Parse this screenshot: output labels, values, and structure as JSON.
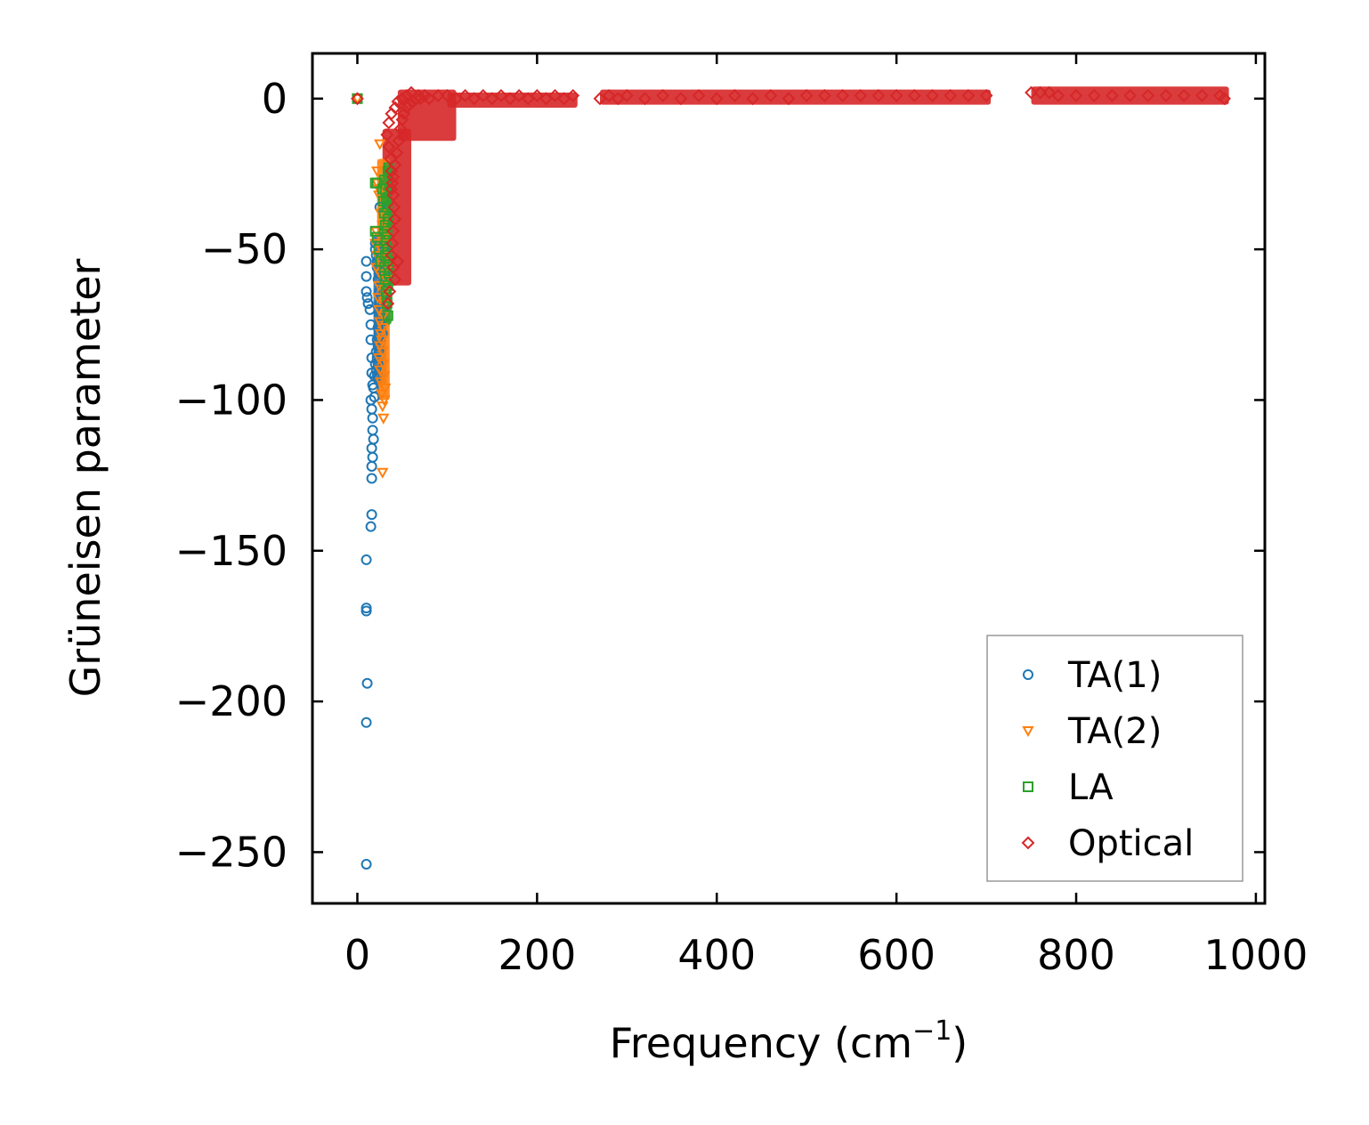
{
  "chart_data": {
    "type": "scatter",
    "title": "",
    "xlabel": "Frequency (cm",
    "xlabel_sup": "−1",
    "xlabel_tail": ")",
    "ylabel": "Grüneisen parameter",
    "xlim": [
      -50,
      1010
    ],
    "ylim": [
      -267,
      15
    ],
    "xticks": [
      0,
      200,
      400,
      600,
      800,
      1000
    ],
    "xtick_labels": [
      "0",
      "200",
      "400",
      "600",
      "800",
      "1000"
    ],
    "yticks": [
      0,
      -50,
      -100,
      -150,
      -200,
      -250
    ],
    "ytick_labels": [
      "0",
      "−50",
      "−100",
      "−150",
      "−200",
      "−250"
    ],
    "grid": false,
    "legend_position": "lower-right",
    "series": [
      {
        "name": "TA(1)",
        "marker": "circle",
        "color": "#1f77b4",
        "points": [
          [
            0,
            0
          ],
          [
            10,
            -54
          ],
          [
            10,
            -59
          ],
          [
            10,
            -64
          ],
          [
            11,
            -66
          ],
          [
            12,
            -68
          ],
          [
            14,
            -70
          ],
          [
            15,
            -75
          ],
          [
            15,
            -80
          ],
          [
            16,
            -86
          ],
          [
            16,
            -91
          ],
          [
            17,
            -95
          ],
          [
            15,
            -100
          ],
          [
            16,
            -103
          ],
          [
            17,
            -106
          ],
          [
            17,
            -110
          ],
          [
            18,
            -113
          ],
          [
            16,
            -116
          ],
          [
            17,
            -119
          ],
          [
            16,
            -122
          ],
          [
            16,
            -126
          ],
          [
            16,
            -138
          ],
          [
            15,
            -142
          ],
          [
            10,
            -153
          ],
          [
            10,
            -169
          ],
          [
            10,
            -170
          ],
          [
            11,
            -194
          ],
          [
            10,
            -207
          ],
          [
            10,
            -254
          ],
          [
            20,
            -48
          ],
          [
            21,
            -52
          ],
          [
            22,
            -56
          ],
          [
            23,
            -60
          ],
          [
            24,
            -64
          ],
          [
            25,
            -68
          ],
          [
            24,
            -72
          ],
          [
            23,
            -76
          ],
          [
            22,
            -80
          ],
          [
            21,
            -84
          ],
          [
            20,
            -88
          ],
          [
            19,
            -92
          ],
          [
            18,
            -96
          ],
          [
            19,
            -99
          ],
          [
            20,
            -50
          ],
          [
            22,
            -54
          ],
          [
            24,
            -58
          ],
          [
            26,
            -62
          ],
          [
            27,
            -66
          ],
          [
            26,
            -70
          ],
          [
            25,
            -74
          ],
          [
            24,
            -78
          ],
          [
            23,
            -82
          ],
          [
            22,
            -86
          ],
          [
            21,
            -90
          ],
          [
            27,
            -48
          ],
          [
            28,
            -52
          ],
          [
            28,
            -56
          ],
          [
            29,
            -60
          ],
          [
            29,
            -64
          ],
          [
            28,
            -68
          ],
          [
            27,
            -72
          ],
          [
            26,
            -76
          ],
          [
            25,
            -80
          ],
          [
            24,
            -84
          ],
          [
            23,
            -88
          ],
          [
            22,
            -92
          ],
          [
            25,
            -36
          ],
          [
            30,
            -50
          ],
          [
            30,
            -58
          ],
          [
            29,
            -70
          ],
          [
            28,
            -78
          ]
        ]
      },
      {
        "name": "TA(2)",
        "marker": "triangle-down",
        "color": "#ff7f0e",
        "points": [
          [
            0,
            0
          ],
          [
            25,
            -15
          ],
          [
            22,
            -24
          ],
          [
            24,
            -32
          ],
          [
            26,
            -38
          ],
          [
            28,
            -42
          ],
          [
            30,
            -46
          ],
          [
            27,
            -50
          ],
          [
            26,
            -54
          ],
          [
            25,
            -58
          ],
          [
            24,
            -62
          ],
          [
            23,
            -66
          ],
          [
            24,
            -70
          ],
          [
            25,
            -74
          ],
          [
            26,
            -78
          ],
          [
            25,
            -82
          ],
          [
            24,
            -86
          ],
          [
            25,
            -90
          ],
          [
            26,
            -94
          ],
          [
            27,
            -98
          ],
          [
            28,
            -102
          ],
          [
            29,
            -106
          ],
          [
            28,
            -124
          ],
          [
            30,
            -40
          ],
          [
            32,
            -44
          ],
          [
            31,
            -48
          ],
          [
            33,
            -52
          ],
          [
            34,
            -56
          ],
          [
            32,
            -60
          ],
          [
            31,
            -64
          ],
          [
            30,
            -68
          ],
          [
            29,
            -72
          ],
          [
            28,
            -76
          ],
          [
            27,
            -80
          ],
          [
            28,
            -84
          ],
          [
            29,
            -88
          ],
          [
            30,
            -92
          ],
          [
            31,
            -96
          ],
          [
            30,
            -100
          ],
          [
            22,
            -28
          ],
          [
            24,
            -30
          ],
          [
            21,
            -44
          ],
          [
            20,
            -48
          ],
          [
            22,
            -52
          ],
          [
            21,
            -56
          ]
        ]
      },
      {
        "name": "LA",
        "marker": "square",
        "color": "#2ca02c",
        "points": [
          [
            0,
            0
          ],
          [
            20,
            -28
          ],
          [
            22,
            -28
          ],
          [
            35,
            -23
          ],
          [
            30,
            -27
          ],
          [
            31,
            -30
          ],
          [
            32,
            -33
          ],
          [
            33,
            -36
          ],
          [
            34,
            -40
          ],
          [
            33,
            -44
          ],
          [
            32,
            -48
          ],
          [
            31,
            -52
          ],
          [
            30,
            -56
          ],
          [
            31,
            -60
          ],
          [
            32,
            -64
          ],
          [
            33,
            -68
          ],
          [
            34,
            -72
          ],
          [
            20,
            -44
          ],
          [
            22,
            -46
          ],
          [
            24,
            -50
          ],
          [
            26,
            -54
          ],
          [
            28,
            -30
          ],
          [
            29,
            -34
          ],
          [
            30,
            -38
          ],
          [
            31,
            -42
          ],
          [
            32,
            -46
          ],
          [
            33,
            -50
          ],
          [
            34,
            -54
          ],
          [
            35,
            -58
          ],
          [
            34,
            -62
          ],
          [
            33,
            -66
          ]
        ]
      },
      {
        "name": "Optical",
        "marker": "diamond",
        "color": "#d62728",
        "points": [
          [
            0,
            0
          ],
          [
            33,
            -12
          ],
          [
            35,
            -8
          ],
          [
            38,
            -5
          ],
          [
            42,
            -3
          ],
          [
            45,
            -1
          ],
          [
            50,
            0
          ],
          [
            55,
            1
          ],
          [
            60,
            2
          ],
          [
            68,
            1
          ],
          [
            35,
            -16
          ],
          [
            37,
            -20
          ],
          [
            38,
            -24
          ],
          [
            39,
            -28
          ],
          [
            40,
            -32
          ],
          [
            41,
            -36
          ],
          [
            42,
            -40
          ],
          [
            40,
            -44
          ],
          [
            39,
            -48
          ],
          [
            38,
            -52
          ],
          [
            40,
            -56
          ],
          [
            42,
            -60
          ],
          [
            45,
            -54
          ],
          [
            36,
            -64
          ],
          [
            34,
            -68
          ],
          [
            38,
            -30
          ],
          [
            40,
            -26
          ],
          [
            42,
            -22
          ],
          [
            44,
            -18
          ],
          [
            46,
            -14
          ],
          [
            48,
            -10
          ],
          [
            50,
            -7
          ],
          [
            52,
            -5
          ],
          [
            55,
            -3
          ],
          [
            58,
            -2
          ],
          [
            62,
            -1
          ],
          [
            66,
            0
          ],
          [
            70,
            0
          ],
          [
            75,
            1
          ],
          [
            80,
            0
          ],
          [
            90,
            1
          ],
          [
            100,
            1
          ],
          [
            110,
            0
          ],
          [
            120,
            1
          ],
          [
            130,
            0
          ],
          [
            140,
            1
          ],
          [
            150,
            0
          ],
          [
            160,
            1
          ],
          [
            170,
            0
          ],
          [
            180,
            1
          ],
          [
            190,
            0
          ],
          [
            200,
            1
          ],
          [
            210,
            0
          ],
          [
            220,
            1
          ],
          [
            230,
            0
          ],
          [
            240,
            1
          ],
          [
            270,
            0
          ],
          [
            280,
            1
          ],
          [
            290,
            0
          ],
          [
            300,
            1
          ],
          [
            320,
            0
          ],
          [
            340,
            1
          ],
          [
            360,
            0
          ],
          [
            380,
            1
          ],
          [
            400,
            0
          ],
          [
            420,
            1
          ],
          [
            440,
            0
          ],
          [
            460,
            1
          ],
          [
            480,
            0
          ],
          [
            500,
            1
          ],
          [
            520,
            1
          ],
          [
            540,
            1
          ],
          [
            560,
            1
          ],
          [
            580,
            1
          ],
          [
            600,
            1
          ],
          [
            620,
            1
          ],
          [
            640,
            1
          ],
          [
            660,
            1
          ],
          [
            680,
            1
          ],
          [
            700,
            1
          ],
          [
            750,
            2
          ],
          [
            760,
            2
          ],
          [
            770,
            2
          ],
          [
            780,
            1
          ],
          [
            800,
            1
          ],
          [
            820,
            1
          ],
          [
            840,
            1
          ],
          [
            860,
            1
          ],
          [
            880,
            1
          ],
          [
            900,
            1
          ],
          [
            920,
            1
          ],
          [
            940,
            1
          ],
          [
            960,
            1
          ],
          [
            965,
            0
          ]
        ]
      }
    ],
    "dense_bands": [
      {
        "series": "Optical",
        "x0": 28,
        "x1": 60,
        "y0": -62,
        "y1": -10
      },
      {
        "series": "Optical",
        "x0": 45,
        "x1": 110,
        "y0": -14,
        "y1": 3
      },
      {
        "series": "Optical",
        "x0": 100,
        "x1": 245,
        "y0": -3,
        "y1": 2
      },
      {
        "series": "Optical",
        "x0": 270,
        "x1": 705,
        "y0": -2,
        "y1": 3
      },
      {
        "series": "Optical",
        "x0": 750,
        "x1": 970,
        "y0": -2,
        "y1": 4
      },
      {
        "series": "TA(1)",
        "x0": 18,
        "x1": 32,
        "y0": -95,
        "y1": -45
      },
      {
        "series": "TA(2)",
        "x0": 22,
        "x1": 36,
        "y0": -100,
        "y1": -20
      },
      {
        "series": "LA",
        "x0": 28,
        "x1": 38,
        "y0": -75,
        "y1": -22
      }
    ]
  }
}
